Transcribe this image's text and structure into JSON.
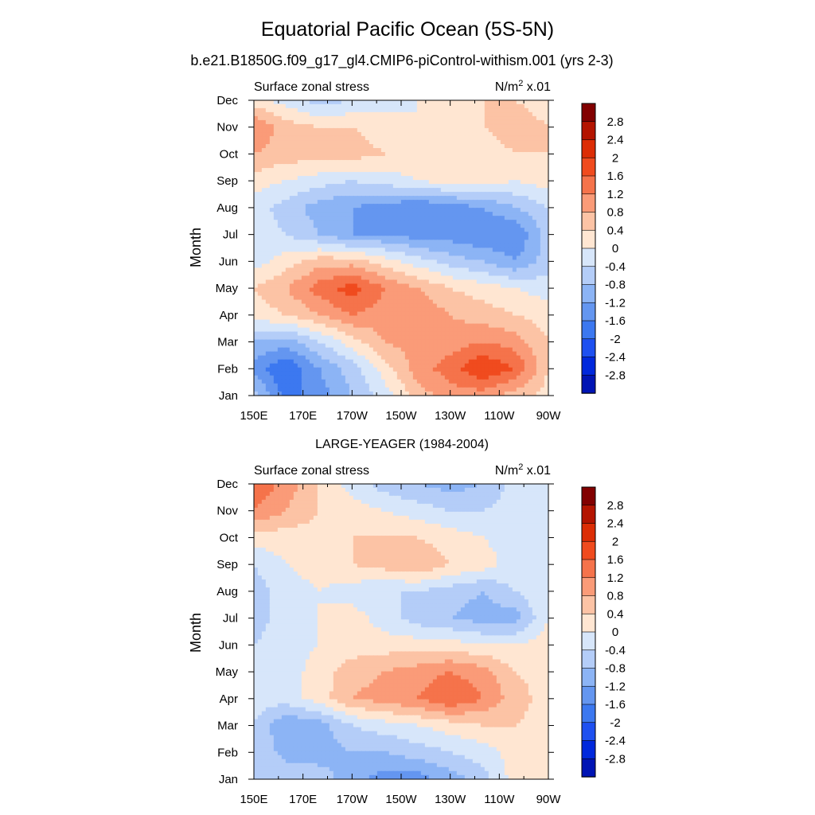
{
  "figure": {
    "title": "Equatorial Pacific Ocean (5S-5N)",
    "subtitle": "b.e21.B1850G.f09_g17_gl4.CMIP6-piControl-withism.001 (yrs 2-3)"
  },
  "chart_data": [
    {
      "type": "heatmap",
      "panel_title": "",
      "left_label": "Surface zonal stress",
      "units_base": "N/m",
      "units_exp": "2",
      "units_scale": " x.01",
      "ylabel": "Month",
      "x_ticks": [
        "150E",
        "170E",
        "170W",
        "150W",
        "130W",
        "110W",
        "90W"
      ],
      "y_ticks": [
        "Jan",
        "Feb",
        "Mar",
        "Apr",
        "May",
        "Jun",
        "Jul",
        "Aug",
        "Sep",
        "Oct",
        "Nov",
        "Dec"
      ],
      "colorbar_labels": [
        "2.8",
        "2.4",
        "2",
        "1.6",
        "1.2",
        "0.8",
        "0.4",
        "0",
        "-0.4",
        "-0.8",
        "-1.2",
        "-1.6",
        "-2",
        "-2.4",
        "-2.8"
      ],
      "grid": [
        [
          -0.6,
          -1.8,
          -1.4,
          -0.8,
          -0.2,
          0.6,
          1.0,
          1.0,
          0.6,
          0.2
        ],
        [
          -1.4,
          -2.0,
          -1.2,
          -0.6,
          0.2,
          1.0,
          1.4,
          2.0,
          1.6,
          0.4
        ],
        [
          -0.8,
          -1.0,
          -0.4,
          0.2,
          0.8,
          1.0,
          1.0,
          1.2,
          1.0,
          0.4
        ],
        [
          0.2,
          0.4,
          0.8,
          1.2,
          1.0,
          1.2,
          0.8,
          0.6,
          0.4,
          0.2
        ],
        [
          0.4,
          0.8,
          1.4,
          1.8,
          1.2,
          0.8,
          0.4,
          0.2,
          0.0,
          -0.2
        ],
        [
          -0.2,
          0.2,
          0.6,
          0.6,
          0.2,
          -0.2,
          -0.6,
          -0.8,
          -1.2,
          -0.6
        ],
        [
          -0.2,
          -0.4,
          -0.8,
          -1.2,
          -1.2,
          -1.4,
          -1.4,
          -1.6,
          -1.6,
          -0.6
        ],
        [
          -0.2,
          -0.6,
          -1.0,
          -1.2,
          -1.4,
          -1.6,
          -1.4,
          -1.2,
          -0.8,
          -0.4
        ],
        [
          0.2,
          0.0,
          -0.2,
          -0.4,
          -0.2,
          0.0,
          0.2,
          0.2,
          0.0,
          0.2
        ],
        [
          0.8,
          0.6,
          0.6,
          0.6,
          0.4,
          0.2,
          0.4,
          0.2,
          0.4,
          0.4
        ],
        [
          1.2,
          0.6,
          0.4,
          0.4,
          0.2,
          0.0,
          0.0,
          0.4,
          0.6,
          0.4
        ],
        [
          0.2,
          -0.2,
          -0.6,
          -0.4,
          -0.2,
          0.0,
          0.2,
          0.4,
          0.4,
          0.2
        ]
      ]
    },
    {
      "type": "heatmap",
      "panel_title": "LARGE-YEAGER (1984-2004)",
      "left_label": "Surface zonal stress",
      "units_base": "N/m",
      "units_exp": "2",
      "units_scale": " x.01",
      "ylabel": "Month",
      "x_ticks": [
        "150E",
        "170E",
        "170W",
        "150W",
        "130W",
        "110W",
        "90W"
      ],
      "y_ticks": [
        "Jan",
        "Feb",
        "Mar",
        "Apr",
        "May",
        "Jun",
        "Jul",
        "Aug",
        "Sep",
        "Oct",
        "Nov",
        "Dec"
      ],
      "colorbar_labels": [
        "2.8",
        "2.4",
        "2",
        "1.6",
        "1.2",
        "0.8",
        "0.4",
        "0",
        "-0.4",
        "-0.8",
        "-1.2",
        "-1.6",
        "-2",
        "-2.4",
        "-2.8"
      ],
      "grid": [
        [
          -0.4,
          -0.4,
          -0.6,
          -1.0,
          -1.4,
          -1.4,
          -1.0,
          -0.6,
          0.2,
          0.2
        ],
        [
          -0.4,
          -1.0,
          -1.0,
          -0.8,
          -0.8,
          -0.6,
          -0.4,
          -0.2,
          0.2,
          0.2
        ],
        [
          -0.4,
          -1.2,
          -1.0,
          -0.4,
          -0.2,
          0.0,
          0.2,
          0.4,
          0.4,
          0.2
        ],
        [
          -0.2,
          -0.2,
          0.2,
          0.8,
          1.0,
          1.2,
          1.6,
          1.2,
          0.6,
          0.2
        ],
        [
          -0.2,
          -0.2,
          0.2,
          0.6,
          0.8,
          1.0,
          1.2,
          1.0,
          0.4,
          0.2
        ],
        [
          -0.4,
          -0.2,
          0.0,
          0.2,
          0.2,
          0.2,
          0.2,
          0.0,
          0.0,
          0.2
        ],
        [
          -0.6,
          -0.2,
          0.0,
          0.2,
          -0.2,
          -0.6,
          -0.8,
          -1.0,
          -1.0,
          0.0
        ],
        [
          -0.6,
          -0.2,
          0.0,
          -0.2,
          -0.4,
          -0.4,
          -0.6,
          -0.8,
          -0.4,
          0.0
        ],
        [
          -0.4,
          0.0,
          0.2,
          0.4,
          0.6,
          0.8,
          0.4,
          0.2,
          -0.2,
          0.0
        ],
        [
          0.2,
          0.2,
          0.2,
          0.4,
          0.4,
          0.4,
          0.2,
          0.0,
          -0.2,
          0.0
        ],
        [
          1.2,
          0.8,
          0.4,
          0.2,
          0.0,
          -0.2,
          -0.4,
          -0.4,
          -0.2,
          0.0
        ],
        [
          1.6,
          1.0,
          0.4,
          -0.2,
          -0.6,
          -0.8,
          -1.0,
          -0.8,
          -0.2,
          0.0
        ]
      ]
    }
  ],
  "palette": [
    "#00007a",
    "#0014b4",
    "#0028dc",
    "#1e50f0",
    "#3c78f0",
    "#6496f0",
    "#8cb4f5",
    "#b4cdf8",
    "#d7e6fa",
    "#ffe6d2",
    "#fcc3a5",
    "#fa9b78",
    "#f5734b",
    "#f04b1e",
    "#dc2d05",
    "#b41400",
    "#820000"
  ]
}
